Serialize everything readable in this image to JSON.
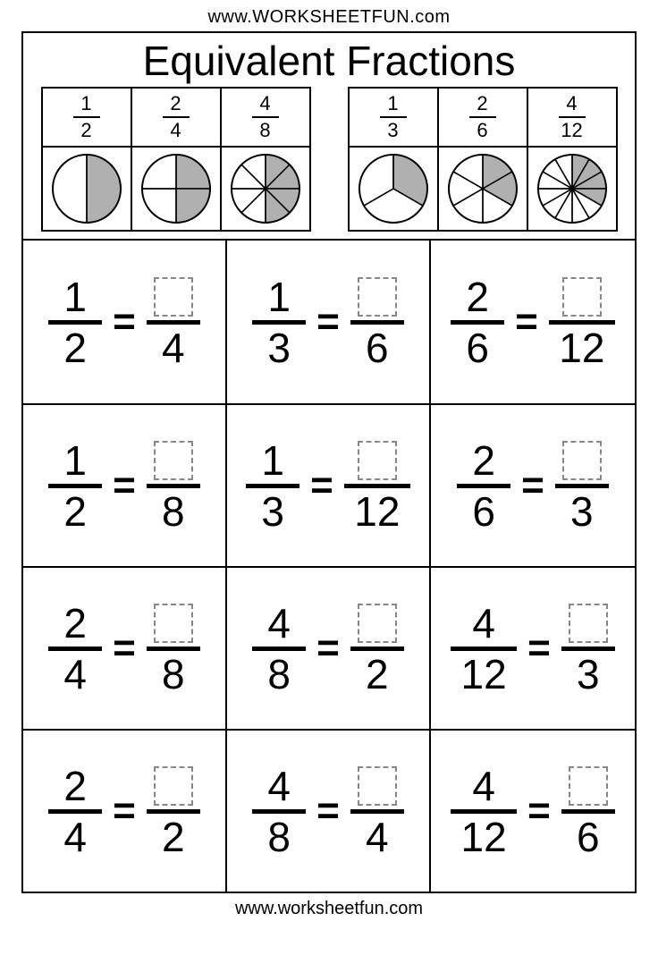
{
  "url_top": "www.WORKSHEETFUN.com",
  "url_bottom": "www.worksheetfun.com",
  "title": "Equivalent Fractions",
  "colors": {
    "fill": "#b0b0b0",
    "stroke": "#000000",
    "background": "#ffffff",
    "dash": "#888888"
  },
  "pie_radius": 38,
  "examples": [
    {
      "fractions": [
        {
          "num": "1",
          "den": "2"
        },
        {
          "num": "2",
          "den": "4"
        },
        {
          "num": "4",
          "den": "8"
        }
      ],
      "pies": [
        {
          "slices": 2,
          "shaded": 1
        },
        {
          "slices": 4,
          "shaded": 2
        },
        {
          "slices": 8,
          "shaded": 4
        }
      ]
    },
    {
      "fractions": [
        {
          "num": "1",
          "den": "3"
        },
        {
          "num": "2",
          "den": "6"
        },
        {
          "num": "4",
          "den": "12"
        }
      ],
      "pies": [
        {
          "slices": 3,
          "shaded": 1
        },
        {
          "slices": 6,
          "shaded": 2
        },
        {
          "slices": 12,
          "shaded": 4
        }
      ]
    }
  ],
  "problems": [
    {
      "left_num": "1",
      "left_den": "2",
      "right_den": "4"
    },
    {
      "left_num": "1",
      "left_den": "3",
      "right_den": "6"
    },
    {
      "left_num": "2",
      "left_den": "6",
      "right_den": "12"
    },
    {
      "left_num": "1",
      "left_den": "2",
      "right_den": "8"
    },
    {
      "left_num": "1",
      "left_den": "3",
      "right_den": "12"
    },
    {
      "left_num": "2",
      "left_den": "6",
      "right_den": "3"
    },
    {
      "left_num": "2",
      "left_den": "4",
      "right_den": "8"
    },
    {
      "left_num": "4",
      "left_den": "8",
      "right_den": "2"
    },
    {
      "left_num": "4",
      "left_den": "12",
      "right_den": "3"
    },
    {
      "left_num": "2",
      "left_den": "4",
      "right_den": "2"
    },
    {
      "left_num": "4",
      "left_den": "8",
      "right_den": "4"
    },
    {
      "left_num": "4",
      "left_den": "12",
      "right_den": "6"
    }
  ]
}
